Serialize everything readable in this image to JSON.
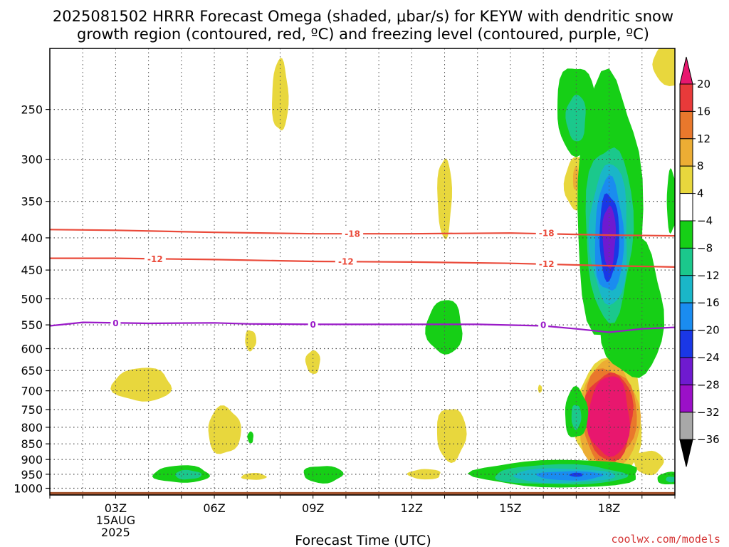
{
  "title_line1": "2025081502 HRRR Forecast Omega (shaded, μbar/s) for KEYW with dendritic snow",
  "title_line2": "growth region (contoured, red, ºC) and freezing level (contoured, purple, ºC)",
  "credit": "coolwx.com/models",
  "chart_data": {
    "type": "contour",
    "title": "2025081502 HRRR Forecast Omega (shaded, μbar/s) for KEYW with dendritic snow growth region (contoured, red, ºC) and freezing level (contoured, purple, ºC)",
    "xlabel": "Forecast Time (UTC)",
    "ylabel": "",
    "x_ticks": [
      "03Z",
      "06Z",
      "09Z",
      "12Z",
      "15Z",
      "18Z"
    ],
    "x_tick_hours": [
      3,
      6,
      9,
      12,
      15,
      18
    ],
    "x_sublabels": [
      "15AUG",
      "2025"
    ],
    "xlim": [
      1.0,
      20.0
    ],
    "y_scale": "log-pressure (hPa)",
    "y_ticks": [
      250,
      300,
      350,
      400,
      450,
      500,
      550,
      600,
      650,
      700,
      750,
      800,
      850,
      900,
      950,
      1000
    ],
    "ylim": [
      1025,
      200
    ],
    "grid": true,
    "colorbar": {
      "levels": [
        20,
        16,
        12,
        8,
        4,
        -4,
        -8,
        -12,
        -16,
        -20,
        -24,
        -28,
        -32,
        -36
      ],
      "colors": [
        "#e8176e",
        "#e83a3a",
        "#e9782c",
        "#ecad34",
        "#e8d73d",
        "#ffffff",
        "#16cf16",
        "#1bc88c",
        "#1ab6c8",
        "#1a8cf0",
        "#1a37e6",
        "#6f1ad0",
        "#9b10c8",
        "#a8a8a8",
        "#000000"
      ]
    },
    "contours": [
      {
        "name": "-18",
        "color": "#ea4a3a",
        "points": [
          [
            1.0,
            388
          ],
          [
            3,
            389
          ],
          [
            6,
            392
          ],
          [
            9,
            394
          ],
          [
            12,
            394
          ],
          [
            15,
            393
          ],
          [
            18,
            396
          ],
          [
            20,
            397
          ]
        ],
        "labels": [
          [
            10.2,
            394
          ],
          [
            16.1,
            393
          ]
        ]
      },
      {
        "name": "-12",
        "color": "#ea4a3a",
        "points": [
          [
            1.0,
            431
          ],
          [
            3,
            431
          ],
          [
            6,
            433
          ],
          [
            9,
            436
          ],
          [
            12,
            437
          ],
          [
            15,
            439
          ],
          [
            18,
            443
          ],
          [
            20,
            445
          ]
        ],
        "labels": [
          [
            4.2,
            432
          ],
          [
            10.0,
            436
          ],
          [
            16.1,
            440
          ]
        ]
      },
      {
        "name": "0",
        "color": "#9a1ac8",
        "points": [
          [
            1.0,
            552
          ],
          [
            2,
            545
          ],
          [
            4,
            547
          ],
          [
            6,
            546
          ],
          [
            7,
            548
          ],
          [
            9,
            549
          ],
          [
            12,
            549
          ],
          [
            14,
            549
          ],
          [
            16,
            552
          ],
          [
            17,
            558
          ],
          [
            18,
            565
          ],
          [
            19,
            558
          ],
          [
            20,
            555
          ]
        ],
        "labels": [
          [
            3.0,
            546
          ],
          [
            9.0,
            549
          ],
          [
            16.0,
            550
          ]
        ]
      }
    ],
    "shaded_regions": [
      {
        "value": 4,
        "x": 8.0,
        "p": 238,
        "rx": 0.25,
        "rp": 31
      },
      {
        "value": 4,
        "x": 20.0,
        "p": 212,
        "rx": 0.7,
        "rp": 16
      },
      {
        "value": 4,
        "x": 13.0,
        "p": 345,
        "rx": 0.22,
        "rp": 50
      },
      {
        "value": 4,
        "x": 17.0,
        "p": 328,
        "rx": 0.35,
        "rp": 32
      },
      {
        "value": 8,
        "x": 17.0,
        "p": 322,
        "rx": 0.1,
        "rp": 14
      },
      {
        "value": 4,
        "x": 7.1,
        "p": 582,
        "rx": 0.17,
        "rp": 22
      },
      {
        "value": 4,
        "x": 9.0,
        "p": 630,
        "rx": 0.22,
        "rp": 27
      },
      {
        "value": 4,
        "x": 3.8,
        "p": 685,
        "rx": 0.9,
        "rp": 42
      },
      {
        "value": 4,
        "x": 6.3,
        "p": 810,
        "rx": 0.5,
        "rp": 70
      },
      {
        "value": 4,
        "x": 13.2,
        "p": 820,
        "rx": 0.45,
        "rp": 80
      },
      {
        "value": 4,
        "x": 12.4,
        "p": 950,
        "rx": 0.5,
        "rp": 18
      },
      {
        "value": 4,
        "x": 7.2,
        "p": 958,
        "rx": 0.38,
        "rp": 12
      },
      {
        "value": 4,
        "x": 15.9,
        "p": 695,
        "rx": 0.06,
        "rp": 10
      },
      {
        "value": 4,
        "x": 19.2,
        "p": 910,
        "rx": 0.45,
        "rp": 40
      },
      {
        "value": 4,
        "x": 18.0,
        "p": 770,
        "rx": 1.05,
        "rp": 165
      },
      {
        "value": 8,
        "x": 18.0,
        "p": 768,
        "rx": 0.92,
        "rp": 148
      },
      {
        "value": 12,
        "x": 18.0,
        "p": 768,
        "rx": 0.82,
        "rp": 134
      },
      {
        "value": 16,
        "x": 18.0,
        "p": 768,
        "rx": 0.73,
        "rp": 122
      },
      {
        "value": 20,
        "x": 18.0,
        "p": 770,
        "rx": 0.64,
        "rp": 112
      },
      {
        "value": -4,
        "x": 18.0,
        "p": 360,
        "rx": 1.0,
        "rp": 160
      },
      {
        "value": -4,
        "x": 17.0,
        "p": 250,
        "rx": 0.6,
        "rp": 40
      },
      {
        "value": -8,
        "x": 17.0,
        "p": 258,
        "rx": 0.3,
        "rp": 22
      },
      {
        "value": -4,
        "x": 18.7,
        "p": 520,
        "rx": 0.95,
        "rp": 130
      },
      {
        "value": -4,
        "x": 19.9,
        "p": 350,
        "rx": 0.15,
        "rp": 40
      },
      {
        "value": -8,
        "x": 18.0,
        "p": 390,
        "rx": 0.72,
        "rp": 120
      },
      {
        "value": -12,
        "x": 18.0,
        "p": 395,
        "rx": 0.58,
        "rp": 100
      },
      {
        "value": -16,
        "x": 18.0,
        "p": 398,
        "rx": 0.44,
        "rp": 82
      },
      {
        "value": -20,
        "x": 18.0,
        "p": 398,
        "rx": 0.3,
        "rp": 62
      },
      {
        "value": -24,
        "x": 18.0,
        "p": 398,
        "rx": 0.2,
        "rp": 45
      },
      {
        "value": -4,
        "x": 13.0,
        "p": 555,
        "rx": 0.55,
        "rp": 55
      },
      {
        "value": -4,
        "x": 17.0,
        "p": 760,
        "rx": 0.35,
        "rp": 70
      },
      {
        "value": -8,
        "x": 17.0,
        "p": 770,
        "rx": 0.15,
        "rp": 35
      },
      {
        "value": -4,
        "x": 7.1,
        "p": 830,
        "rx": 0.09,
        "rp": 18
      },
      {
        "value": -4,
        "x": 5.0,
        "p": 950,
        "rx": 0.85,
        "rp": 30
      },
      {
        "value": -8,
        "x": 5.2,
        "p": 952,
        "rx": 0.4,
        "rp": 16
      },
      {
        "value": -4,
        "x": 9.3,
        "p": 950,
        "rx": 0.6,
        "rp": 30
      },
      {
        "value": -4,
        "x": 16.5,
        "p": 948,
        "rx": 2.55,
        "rp": 48
      },
      {
        "value": -8,
        "x": 16.5,
        "p": 952,
        "rx": 2.0,
        "rp": 35
      },
      {
        "value": -12,
        "x": 16.6,
        "p": 955,
        "rx": 1.55,
        "rp": 25
      },
      {
        "value": -16,
        "x": 16.8,
        "p": 955,
        "rx": 1.0,
        "rp": 16
      },
      {
        "value": -20,
        "x": 17.0,
        "p": 952,
        "rx": 0.2,
        "rp": 7
      },
      {
        "value": -4,
        "x": 19.9,
        "p": 965,
        "rx": 0.45,
        "rp": 22
      },
      {
        "value": -8,
        "x": 19.9,
        "p": 968,
        "rx": 0.18,
        "rp": 10
      }
    ],
    "ground": {
      "from_p": 1025,
      "to_p": 1014
    }
  }
}
